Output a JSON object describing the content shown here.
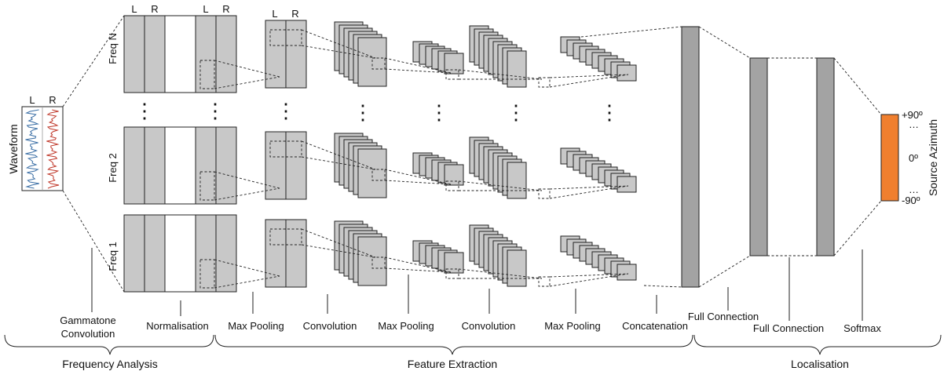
{
  "waveform": {
    "label": "Waveform",
    "left_channel": "L",
    "right_channel": "R",
    "colors": {
      "left": "#3a6ea5",
      "right": "#c0392b"
    }
  },
  "channels": {
    "left": "L",
    "right": "R"
  },
  "frequency_bands": [
    "Freq N",
    "Freq 2",
    "Freq 1"
  ],
  "ellipsis_vertical": "⋮",
  "stage_labels": {
    "gammatone_line1": "Gammatone",
    "gammatone_line2": "Convolution",
    "normalisation": "Normalisation",
    "max_pooling_1": "Max Pooling",
    "convolution_1": "Convolution",
    "max_pooling_2": "Max Pooling",
    "convolution_2": "Convolution",
    "max_pooling_3": "Max Pooling",
    "concatenation": "Concatenation",
    "full_connection_1": "Full Connection",
    "full_connection_2": "Full Connection",
    "softmax": "Softmax"
  },
  "sections": {
    "frequency_analysis": "Frequency Analysis",
    "feature_extraction": "Feature Extraction",
    "localisation": "Localisation"
  },
  "output": {
    "axis_label": "Source Azimuth",
    "ticks": [
      "+90º",
      "…",
      "0º",
      "…",
      "-90º"
    ],
    "color": "#f07f2e"
  }
}
